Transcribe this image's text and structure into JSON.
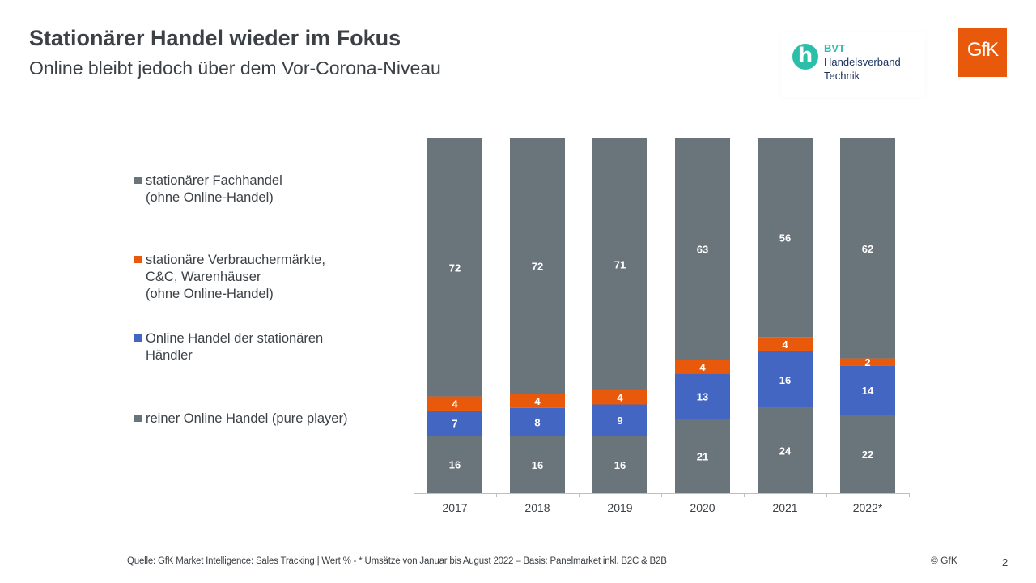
{
  "header": {
    "title": "Stationärer Handel wieder im Fokus",
    "subtitle": "Online bleibt jedoch über dem Vor-Corona-Niveau"
  },
  "logos": {
    "bvt": {
      "abbr": "BVT",
      "line1": "Handelsverband",
      "line2": "Technik",
      "glyph": "h",
      "color": "#2bbfa9"
    },
    "gfk": {
      "text": "GfK",
      "color": "#e8590c"
    }
  },
  "colors": {
    "gray": "#6a747b",
    "orange": "#e8590c",
    "blue": "#4266c2",
    "axis": "#bfbfbf",
    "text": "#3c4146"
  },
  "legend": [
    {
      "label": "stationärer Fachhandel\n(ohne Online-Handel)",
      "color": "#6a747b"
    },
    {
      "label": "stationäre Verbrauchermärkte,\nC&C, Warenhäuser\n(ohne Online-Handel)",
      "color": "#e8590c"
    },
    {
      "label": "Online Handel der stationären\nHändler",
      "color": "#4266c2"
    },
    {
      "label": "reiner Online Handel (pure player)",
      "color": "#6a747b"
    }
  ],
  "chart_data": {
    "type": "bar",
    "stacked": true,
    "normalized_100": true,
    "categories": [
      "2017",
      "2018",
      "2019",
      "2020",
      "2021",
      "2022*"
    ],
    "series": [
      {
        "name": "reiner Online Handel (pure player)",
        "color": "#6a747b",
        "values": [
          16,
          16,
          16,
          21,
          24,
          22
        ]
      },
      {
        "name": "Online Handel der stationären Händler",
        "color": "#4266c2",
        "values": [
          7,
          8,
          9,
          13,
          16,
          14
        ]
      },
      {
        "name": "stationäre Verbrauchermärkte, C&C, Warenhäuser (ohne Online-Handel)",
        "color": "#e8590c",
        "values": [
          4,
          4,
          4,
          4,
          4,
          2
        ]
      },
      {
        "name": "stationärer Fachhandel (ohne Online-Handel)",
        "color": "#6a747b",
        "values": [
          72,
          72,
          71,
          63,
          56,
          62
        ]
      }
    ],
    "ylabel": "Wert %",
    "ylim": [
      0,
      100
    ],
    "grid": false,
    "legend_position": "left"
  },
  "footer": {
    "source": "Quelle: GfK Market Intelligence: Sales Tracking | Wert % - * Umsätze von Januar bis August 2022 – Basis: Panelmarket inkl. B2C & B2B",
    "copyright": "© GfK",
    "page": "2"
  }
}
